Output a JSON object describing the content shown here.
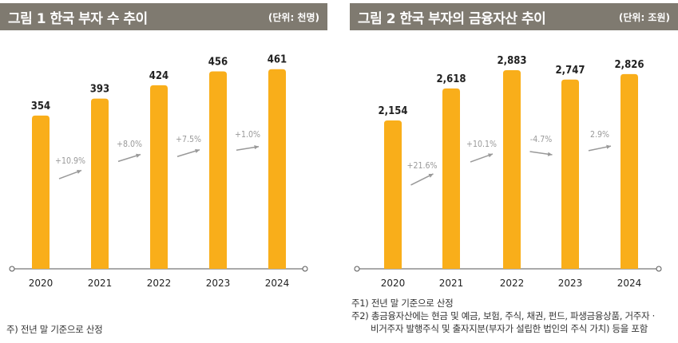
{
  "colors": {
    "bar": "#f9ae1a",
    "header": "#7f7a70",
    "axis": "#555555",
    "growth": "#999999"
  },
  "chart_data": [
    {
      "type": "bar",
      "title": "그림 1  한국 부자 수 추이",
      "unit": "(단위: 천명)",
      "categories": [
        "2020",
        "2021",
        "2022",
        "2023",
        "2024"
      ],
      "values": [
        354,
        393,
        424,
        456,
        461
      ],
      "value_labels": [
        "354",
        "393",
        "424",
        "456",
        "461"
      ],
      "growth_labels": [
        "+10.9%",
        "+8.0%",
        "+7.5%",
        "+1.0%"
      ],
      "ylim": [
        0,
        490
      ],
      "notes": [
        "주) 전년 말 기준으로 산정"
      ]
    },
    {
      "type": "bar",
      "title": "그림 2  한국 부자의 금융자산 추이",
      "unit": "(단위: 조원)",
      "categories": [
        "2020",
        "2021",
        "2022",
        "2023",
        "2024"
      ],
      "values": [
        2154,
        2618,
        2883,
        2747,
        2826
      ],
      "value_labels": [
        "2,154",
        "2,618",
        "2,883",
        "2,747",
        "2,826"
      ],
      "growth_labels": [
        "+21.6%",
        "+10.1%",
        "-4.7%",
        "2.9%"
      ],
      "ylim": [
        0,
        3080
      ],
      "notes": [
        "주1) 전년 말 기준으로 산정",
        "주2) 총금융자산에는 현금 및 예금, 보험, 주식, 채권, 펀드, 파생금융상품, 거주자 ·",
        "비거주자 발행주식 및 출자지분(부자가 설립한 법인의 주식 가치) 등을 포함"
      ]
    }
  ]
}
